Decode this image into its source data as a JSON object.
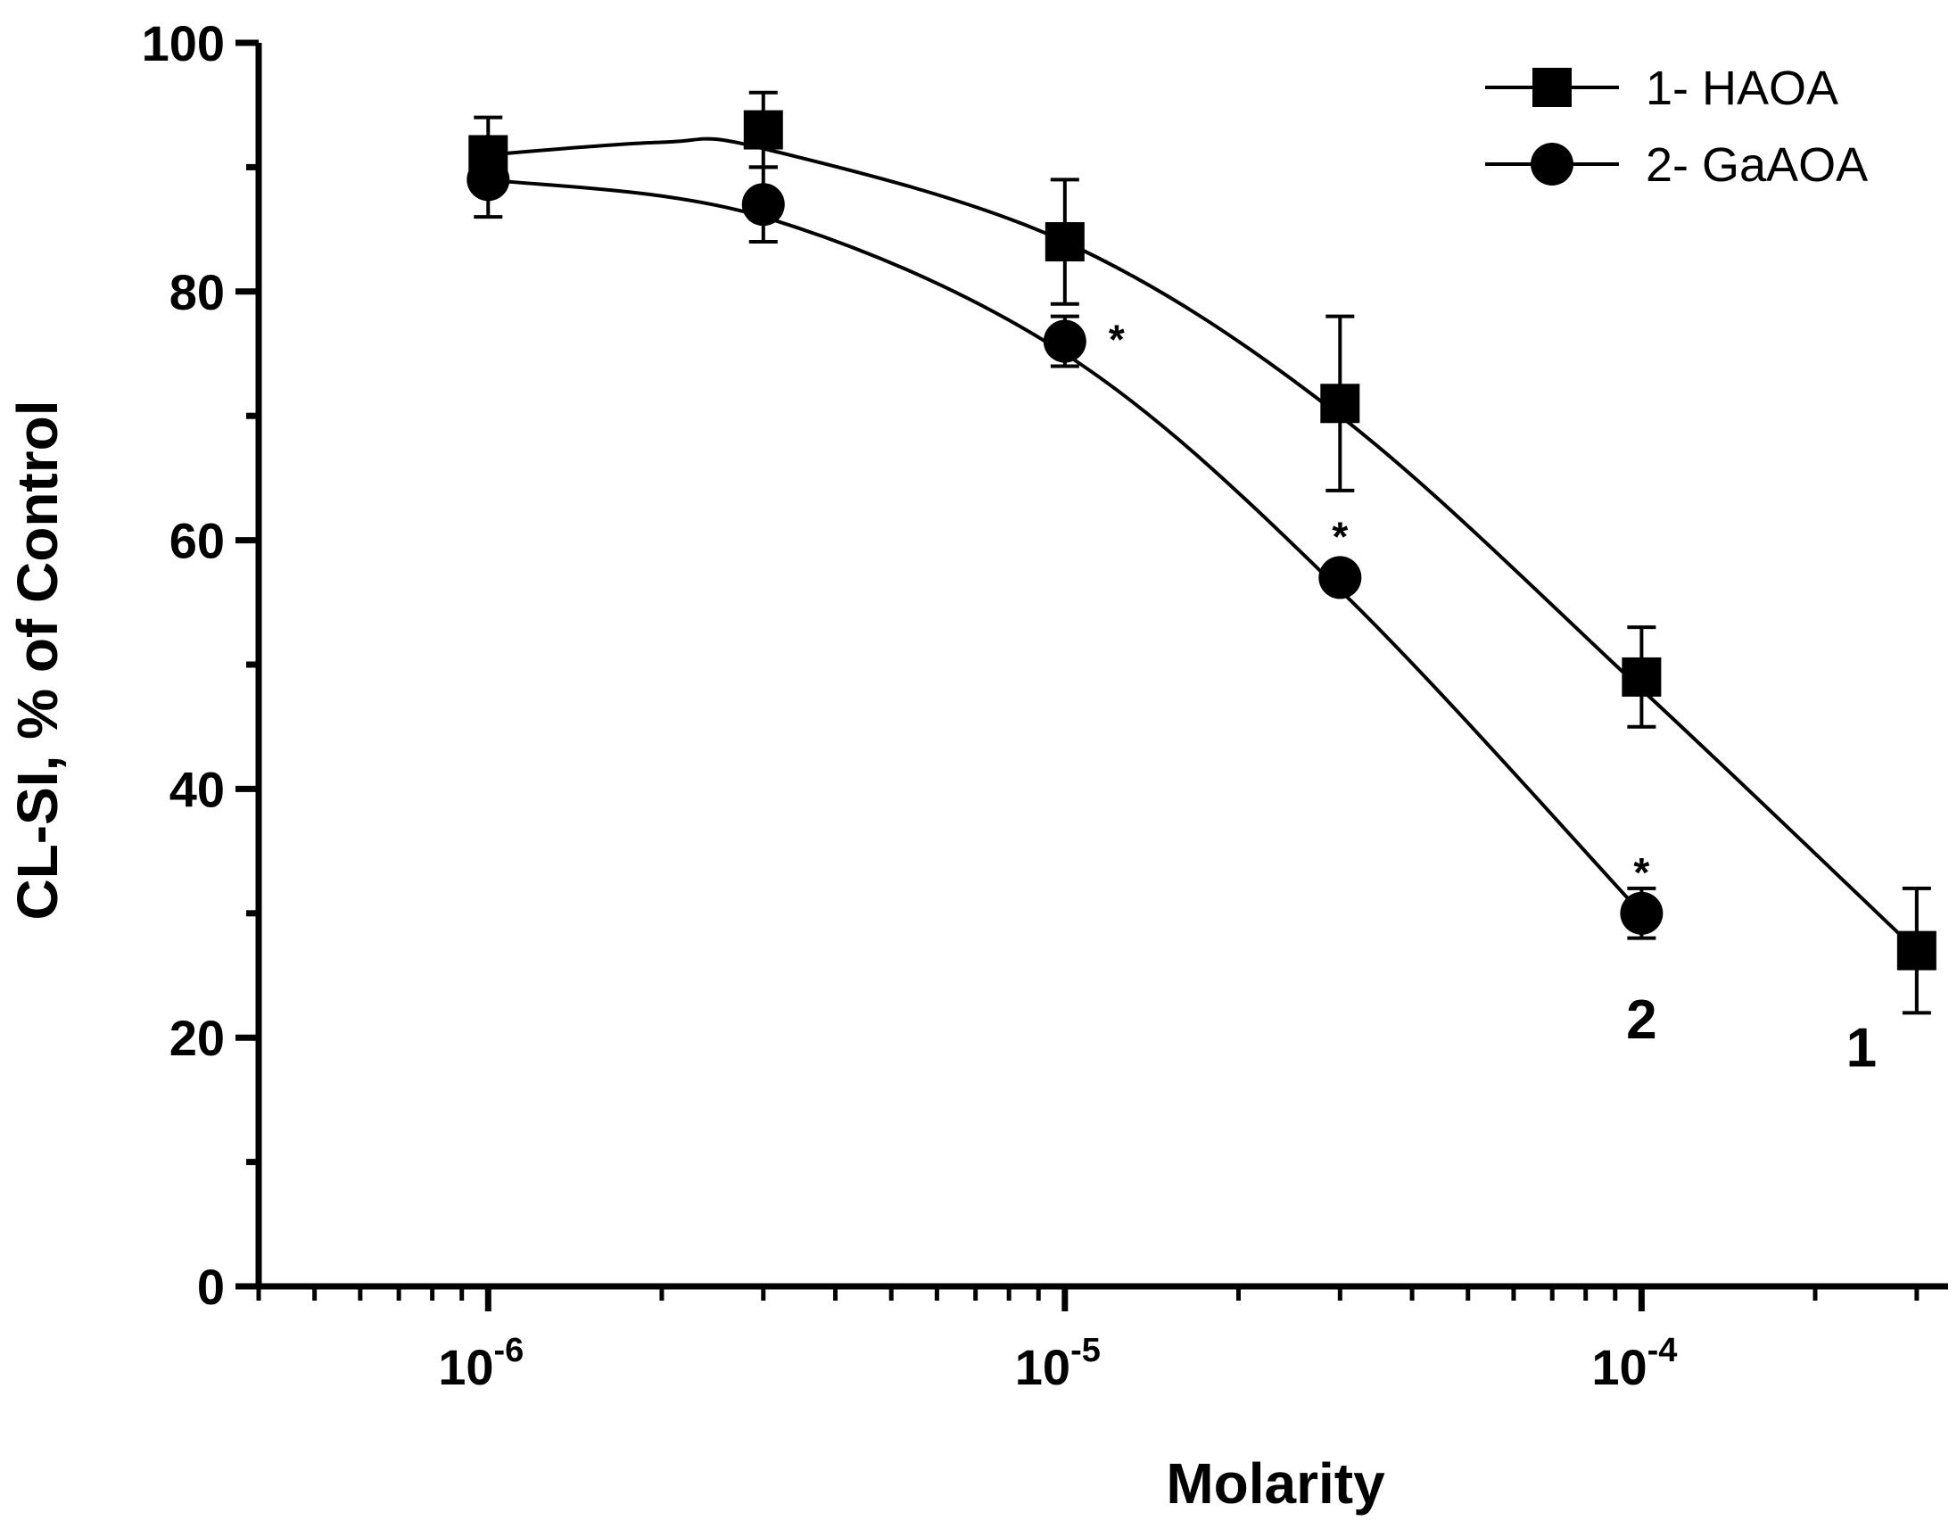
{
  "chart_data": {
    "type": "scatter",
    "title": "",
    "xlabel": "Molarity",
    "ylabel": "CL-SI, % of Control",
    "xscale": "log",
    "xlim": [
      4e-07,
      0.00034
    ],
    "ylim": [
      0,
      100
    ],
    "grid": false,
    "legend_position": "top-right",
    "y_ticks": [
      0,
      20,
      40,
      60,
      80,
      100
    ],
    "x_major_ticks": [
      {
        "value": 1e-06,
        "base": "10",
        "exp": "-6"
      },
      {
        "value": 1e-05,
        "base": "10",
        "exp": "-5"
      },
      {
        "value": 0.0001,
        "base": "10",
        "exp": "-4"
      }
    ],
    "series": [
      {
        "name": "1- HAOA",
        "marker": "square",
        "curve_label": "1",
        "x": [
          1e-06,
          3e-06,
          1e-05,
          3e-05,
          0.0001,
          0.0003
        ],
        "y": [
          91,
          93,
          84,
          71,
          49,
          27
        ],
        "err": [
          3,
          3,
          5,
          7,
          4,
          5
        ],
        "fit_curve": {
          "x": [
            1e-06,
            2e-06,
            3e-06,
            1e-05,
            3e-05,
            0.0001,
            0.0003
          ],
          "y": [
            91,
            92,
            91.5,
            84,
            70,
            48,
            27
          ]
        }
      },
      {
        "name": "2- GaAOA",
        "marker": "circle",
        "curve_label": "2",
        "x": [
          1e-06,
          3e-06,
          1e-05,
          3e-05,
          0.0001
        ],
        "y": [
          89,
          87,
          76,
          57,
          30
        ],
        "err": [
          3,
          3,
          2,
          0.5,
          2
        ],
        "significant": [
          "",
          "",
          "*",
          "*",
          "*"
        ],
        "fit_curve": {
          "x": [
            1e-06,
            3e-06,
            1e-05,
            3e-05,
            0.0001
          ],
          "y": [
            89,
            86,
            75,
            56,
            30
          ]
        }
      }
    ]
  }
}
